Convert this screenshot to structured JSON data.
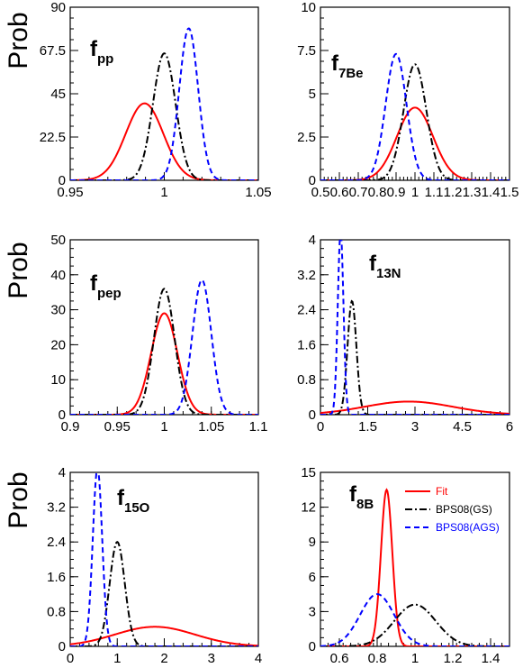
{
  "figure": {
    "ylabel": "Prob"
  },
  "colors": {
    "fit": "#ff0000",
    "gs": "#000000",
    "ags": "#0000ff"
  },
  "legend": [
    {
      "label": "Fit",
      "color": "#ff0000",
      "dash": "solid"
    },
    {
      "label": "BPS08(GS)",
      "color": "#000000",
      "dash": "dashdot"
    },
    {
      "label": "BPS08(AGS)",
      "color": "#0000ff",
      "dash": "dashed"
    }
  ],
  "chart_data": [
    {
      "type": "line",
      "name_main": "f",
      "name_sub": "pp",
      "xlim": [
        0.95,
        1.05
      ],
      "ylim": [
        0,
        90
      ],
      "xticks": [
        "0.95",
        "1",
        "1.05"
      ],
      "yticks": [
        "0",
        "22.5",
        "45",
        "67.5",
        "90"
      ],
      "series": [
        {
          "key": "fit",
          "label": "Fit",
          "peak": {
            "mu": 0.9895,
            "sigma": 0.01,
            "amp": 40
          }
        },
        {
          "key": "gs",
          "label": "BPS08(GS)",
          "peak": {
            "mu": 1.0,
            "sigma": 0.006,
            "amp": 66
          }
        },
        {
          "key": "ags",
          "label": "BPS08(AGS)",
          "peak": {
            "mu": 1.013,
            "sigma": 0.005,
            "amp": 79
          }
        }
      ]
    },
    {
      "type": "line",
      "name_main": "f",
      "name_sub": "7Be",
      "xlim": [
        0.5,
        1.5
      ],
      "ylim": [
        0,
        10
      ],
      "xticks": [
        "0.5",
        "0.6",
        "0.7",
        "0.8",
        "0.9",
        "1",
        "1.1",
        "1.2",
        "1.3",
        "1.4",
        "1.5"
      ],
      "yticks": [
        "0",
        "2.5",
        "5",
        "7.5",
        "10"
      ],
      "series": [
        {
          "key": "fit",
          "label": "Fit",
          "peak": {
            "mu": 1.0,
            "sigma": 0.095,
            "amp": 4.2
          }
        },
        {
          "key": "gs",
          "label": "BPS08(GS)",
          "peak": {
            "mu": 1.0,
            "sigma": 0.06,
            "amp": 6.7
          }
        },
        {
          "key": "ags",
          "label": "BPS08(AGS)",
          "peak": {
            "mu": 0.9,
            "sigma": 0.055,
            "amp": 7.3
          }
        }
      ]
    },
    {
      "type": "line",
      "name_main": "f",
      "name_sub": "pep",
      "xlim": [
        0.9,
        1.1
      ],
      "ylim": [
        0,
        50
      ],
      "xticks": [
        "0.9",
        "0.95",
        "1",
        "1.05",
        "1.1"
      ],
      "yticks": [
        "0",
        "10",
        "20",
        "30",
        "40",
        "50"
      ],
      "series": [
        {
          "key": "fit",
          "label": "Fit",
          "peak": {
            "mu": 1.0,
            "sigma": 0.014,
            "amp": 29
          }
        },
        {
          "key": "gs",
          "label": "BPS08(GS)",
          "peak": {
            "mu": 1.0,
            "sigma": 0.011,
            "amp": 36
          }
        },
        {
          "key": "ags",
          "label": "BPS08(AGS)",
          "peak": {
            "mu": 1.04,
            "sigma": 0.01,
            "amp": 38.5
          }
        }
      ]
    },
    {
      "type": "line",
      "name_main": "f",
      "name_sub": "13N",
      "xlim": [
        0,
        6
      ],
      "ylim": [
        0,
        4
      ],
      "xticks": [
        "0",
        "1.5",
        "3",
        "4.5",
        "6"
      ],
      "yticks": [
        "0",
        "0.8",
        "1.6",
        "2.4",
        "3.2",
        "4"
      ],
      "series": [
        {
          "key": "fit",
          "label": "Fit",
          "peak": {
            "mu": 2.8,
            "sigma": 1.4,
            "amp": 0.3
          }
        },
        {
          "key": "gs",
          "label": "BPS08(GS)",
          "peak": {
            "mu": 1.0,
            "sigma": 0.14,
            "amp": 2.6
          }
        },
        {
          "key": "ags",
          "label": "BPS08(AGS)",
          "peak": {
            "mu": 0.64,
            "sigma": 0.09,
            "amp": 4.2
          }
        }
      ]
    },
    {
      "type": "line",
      "name_main": "f",
      "name_sub": "15O",
      "xlim": [
        0,
        4
      ],
      "ylim": [
        0,
        4
      ],
      "xticks": [
        "0",
        "1",
        "2",
        "3",
        "4"
      ],
      "yticks": [
        "0",
        "0.8",
        "1.6",
        "2.4",
        "3.2",
        "4"
      ],
      "series": [
        {
          "key": "fit",
          "label": "Fit",
          "peak": {
            "mu": 1.8,
            "sigma": 0.85,
            "amp": 0.45
          }
        },
        {
          "key": "gs",
          "label": "BPS08(GS)",
          "peak": {
            "mu": 1.0,
            "sigma": 0.16,
            "amp": 2.4
          }
        },
        {
          "key": "ags",
          "label": "BPS08(AGS)",
          "peak": {
            "mu": 0.58,
            "sigma": 0.1,
            "amp": 4.1
          }
        }
      ]
    },
    {
      "type": "line",
      "name_main": "f",
      "name_sub": "8B",
      "xlim": [
        0.5,
        1.5
      ],
      "ylim": [
        0,
        15
      ],
      "xticks": [
        "0.6",
        "0.8",
        "1",
        "1.2",
        "1.4"
      ],
      "yticks": [
        "0",
        "3",
        "6",
        "9",
        "12",
        "15"
      ],
      "series": [
        {
          "key": "fit",
          "label": "Fit",
          "peak": {
            "mu": 0.85,
            "sigma": 0.03,
            "amp": 13.5
          }
        },
        {
          "key": "gs",
          "label": "BPS08(GS)",
          "peak": {
            "mu": 1.0,
            "sigma": 0.11,
            "amp": 3.6
          }
        },
        {
          "key": "ags",
          "label": "BPS08(AGS)",
          "peak": {
            "mu": 0.8,
            "sigma": 0.09,
            "amp": 4.5
          }
        }
      ]
    }
  ]
}
